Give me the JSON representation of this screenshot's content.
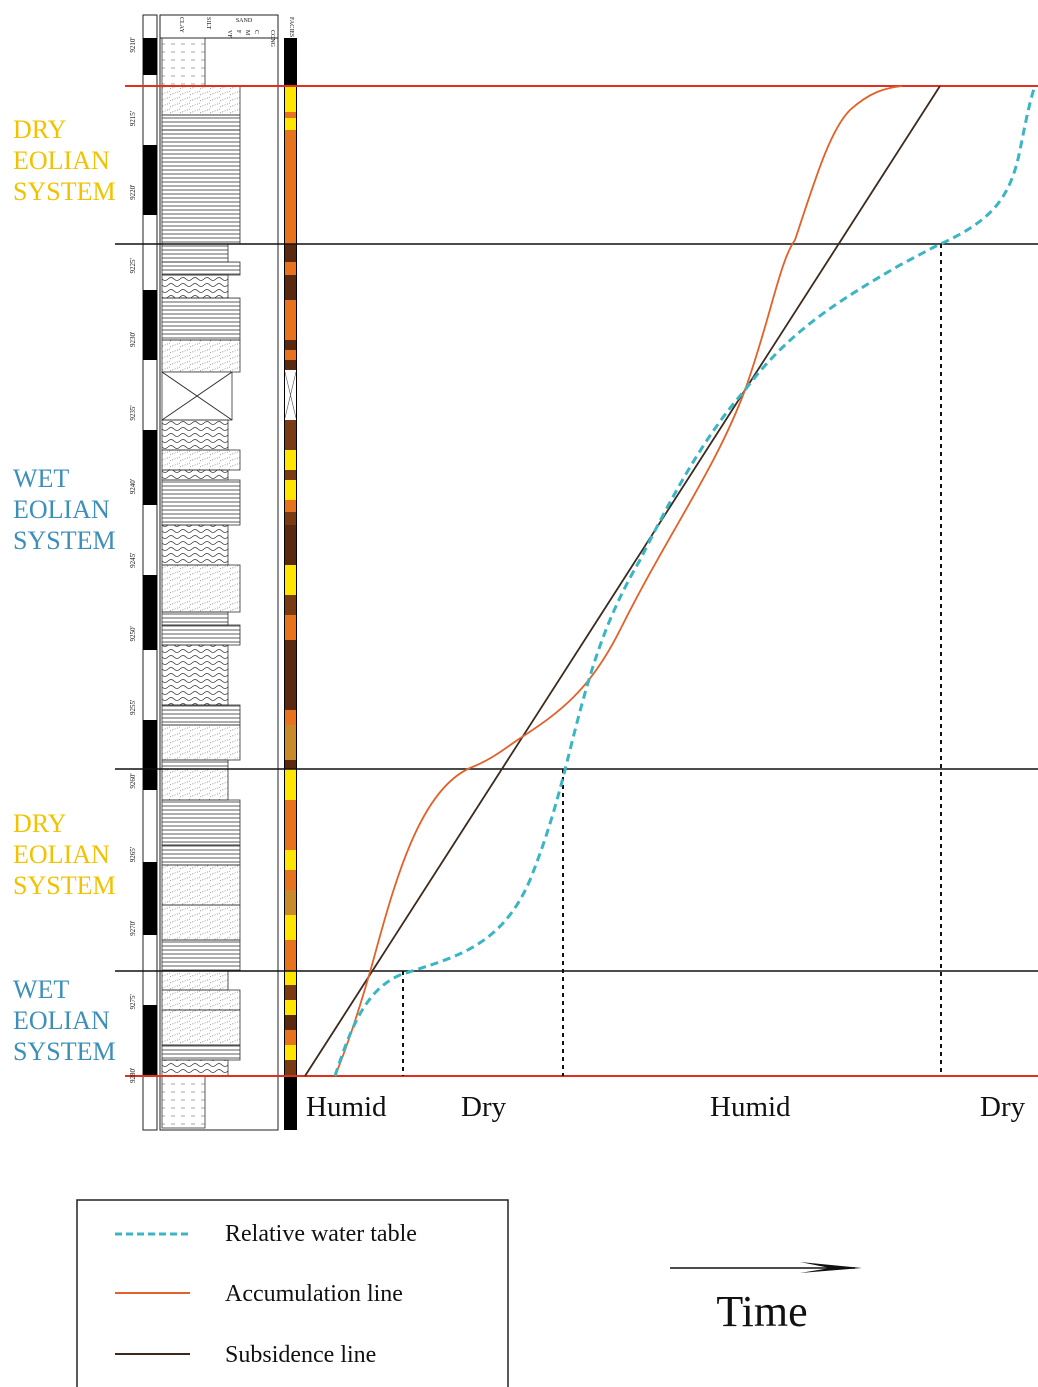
{
  "column_headers": [
    "CLAY",
    "SILT",
    "SAND",
    "VF",
    "F",
    "M",
    "C",
    "CONG",
    "FACIES"
  ],
  "depths": [
    "9210'",
    "9215'",
    "9220'",
    "9225'",
    "9230'",
    "9235'",
    "9240'",
    "9245'",
    "9250'",
    "9255'",
    "9260'",
    "9265'",
    "9270'",
    "9275'",
    "9280'"
  ],
  "systems": [
    {
      "lines": [
        "DRY",
        "EOLIAN",
        "SYSTEM"
      ]
    },
    {
      "lines": [
        "WET",
        "EOLIAN",
        "SYSTEM"
      ]
    },
    {
      "lines": [
        "DRY",
        "EOLIAN",
        "SYSTEM"
      ]
    },
    {
      "lines": [
        "WET",
        "EOLIAN",
        "SYSTEM"
      ]
    }
  ],
  "climate": [
    "Humid",
    "Dry",
    "Humid",
    "Dry"
  ],
  "legend": [
    "Relative water table",
    "Accumulation line",
    "Subsidence line"
  ],
  "time_label": "Time"
}
